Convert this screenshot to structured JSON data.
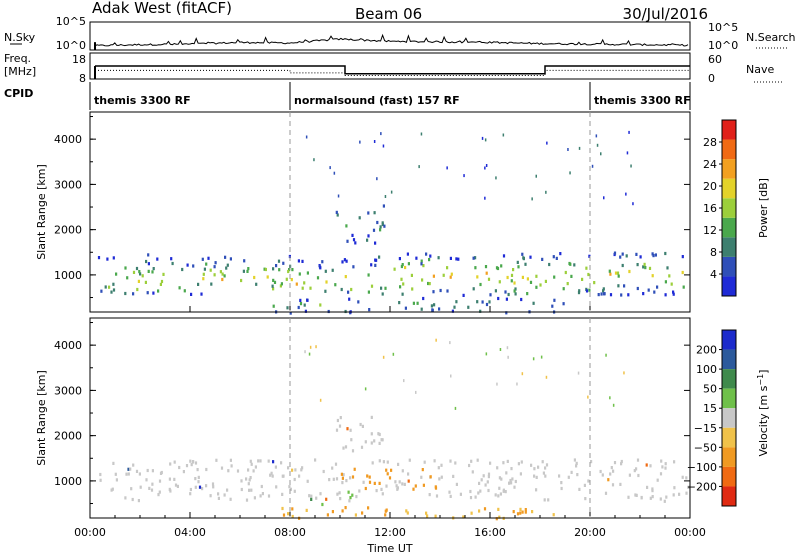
{
  "header": {
    "radar": "Adak West (fitACF)",
    "beam": "Beam 06",
    "date": "30/Jul/2016"
  },
  "colors": {
    "power_scale": [
      "#1f2bd6",
      "#2f4fb8",
      "#3d7f6f",
      "#4aa84c",
      "#9ccf3b",
      "#e3d22a",
      "#f2a020",
      "#f06a14",
      "#e0201a"
    ],
    "velocity_scale": [
      "#1c2bcc",
      "#2c5a9c",
      "#3f8a4c",
      "#6fc04a",
      "#c8c8c8",
      "#f0c24a",
      "#f09a22",
      "#f06a12",
      "#e02a12"
    ]
  },
  "chart_data": [
    {
      "type": "line",
      "panel": "nsky-nsearch",
      "ylabel_left": "N.Sky",
      "ylabel_right": "N.Search",
      "left_ticks": [
        "10^5",
        "10^0"
      ],
      "right_ticks": [
        "10^5",
        "10^0"
      ],
      "x": [
        0,
        2,
        4,
        6,
        8,
        10,
        12,
        14,
        16,
        18,
        20,
        22,
        24
      ],
      "nsky_log10": [
        0.6,
        0.8,
        0.9,
        1.2,
        1.1,
        1.8,
        1.4,
        1.3,
        1.2,
        1.0,
        0.9,
        0.8,
        0.7
      ]
    },
    {
      "type": "line",
      "panel": "freq-nave",
      "ylabel_left": "Freq.",
      "ylabel_left_unit": "[MHz]",
      "ylabel_right": "Nave",
      "left_ticks": [
        "18",
        "8"
      ],
      "right_ticks": [
        "60",
        "0"
      ],
      "freq_steps": [
        {
          "x0": 0.2,
          "x1": 10.2,
          "v": 13.0
        },
        {
          "x0": 10.2,
          "x1": 18.2,
          "v": 10.0
        },
        {
          "x0": 18.2,
          "x1": 24,
          "v": 13.0
        }
      ],
      "nave_steps": [
        {
          "x0": 0.2,
          "x1": 8,
          "v": 20
        },
        {
          "x0": 8,
          "x1": 10.2,
          "v": 14
        },
        {
          "x0": 10.2,
          "x1": 18.2,
          "v": 8
        },
        {
          "x0": 18.2,
          "x1": 24,
          "v": 20
        }
      ]
    },
    {
      "type": "table",
      "panel": "cpid",
      "label": "CPID",
      "segments": [
        {
          "x0": 0,
          "x1": 8,
          "label": "themis 3300 RF"
        },
        {
          "x0": 8,
          "x1": 20,
          "label": "normalsound (fast) 157 RF"
        },
        {
          "x0": 20,
          "x1": 24,
          "label": "themis 3300 RF"
        }
      ]
    },
    {
      "type": "heatmap",
      "panel": "power",
      "ylabel": "Slant Range [km]",
      "yticks": [
        "4000",
        "3000",
        "2000",
        "1000"
      ],
      "ytick_values": [
        4000,
        3000,
        2000,
        1000
      ],
      "ylim": [
        180,
        4600
      ],
      "xlim": [
        0,
        24
      ],
      "colorbar_label": "Power [dB]",
      "colorbar_ticks": [
        "28",
        "24",
        "20",
        "16",
        "12",
        "8",
        "4"
      ],
      "colorbar_values": [
        28,
        24,
        20,
        16,
        12,
        8,
        4
      ],
      "colorbar_range": [
        0,
        32
      ],
      "bands": [
        {
          "t0": 0.3,
          "t1": 8.2,
          "r0": 580,
          "r1": 1480,
          "core_r": 950,
          "peak": 18
        },
        {
          "t0": 8.2,
          "t1": 11.5,
          "r0": 650,
          "r1": 1400,
          "core_r": 900,
          "peak": 20
        },
        {
          "t0": 11.5,
          "t1": 18.5,
          "r0": 580,
          "r1": 1500,
          "core_r": 1000,
          "peak": 22
        },
        {
          "t0": 18.5,
          "t1": 24,
          "r0": 580,
          "r1": 1520,
          "core_r": 1050,
          "peak": 18
        },
        {
          "t0": 7.3,
          "t1": 19.0,
          "r0": 190,
          "r1": 520,
          "core_r": 330,
          "peak": 12
        },
        {
          "t0": 9.8,
          "t1": 11.8,
          "r0": 1700,
          "r1": 2600,
          "core_r": 2150,
          "peak": 10
        }
      ]
    },
    {
      "type": "heatmap",
      "panel": "velocity",
      "ylabel": "Slant Range [km]",
      "yticks": [
        "4000",
        "3000",
        "2000",
        "1000"
      ],
      "ytick_values": [
        4000,
        3000,
        2000,
        1000
      ],
      "ylim": [
        180,
        4600
      ],
      "xlim": [
        0,
        24
      ],
      "colorbar_label": "Velocity [m s^-1]",
      "colorbar_ticks": [
        "200",
        "100",
        "50",
        "15",
        "−15",
        "−50",
        "−100",
        "−200"
      ],
      "colorbar_tick_index": [
        8,
        7,
        6,
        5,
        4,
        3,
        2,
        1
      ],
      "xticks": [
        "00:00",
        "04:00",
        "08:00",
        "12:00",
        "16:00",
        "20:00",
        "00:00"
      ],
      "xtick_values": [
        0,
        4,
        8,
        12,
        16,
        20,
        24
      ],
      "xlabel": "Time UT",
      "bands": [
        {
          "t0": 0.3,
          "t1": 24,
          "r0": 580,
          "r1": 1500,
          "v": 0
        },
        {
          "t0": 10.0,
          "t1": 14.0,
          "r0": 850,
          "r1": 1350,
          "v": -60
        },
        {
          "t0": 8.3,
          "t1": 10.5,
          "r0": 500,
          "r1": 800,
          "v": 30
        },
        {
          "t0": 9.8,
          "t1": 11.8,
          "r0": 1700,
          "r1": 2600,
          "v": 0
        },
        {
          "t0": 7.3,
          "t1": 19.0,
          "r0": 190,
          "r1": 450,
          "v": -30
        }
      ]
    }
  ]
}
